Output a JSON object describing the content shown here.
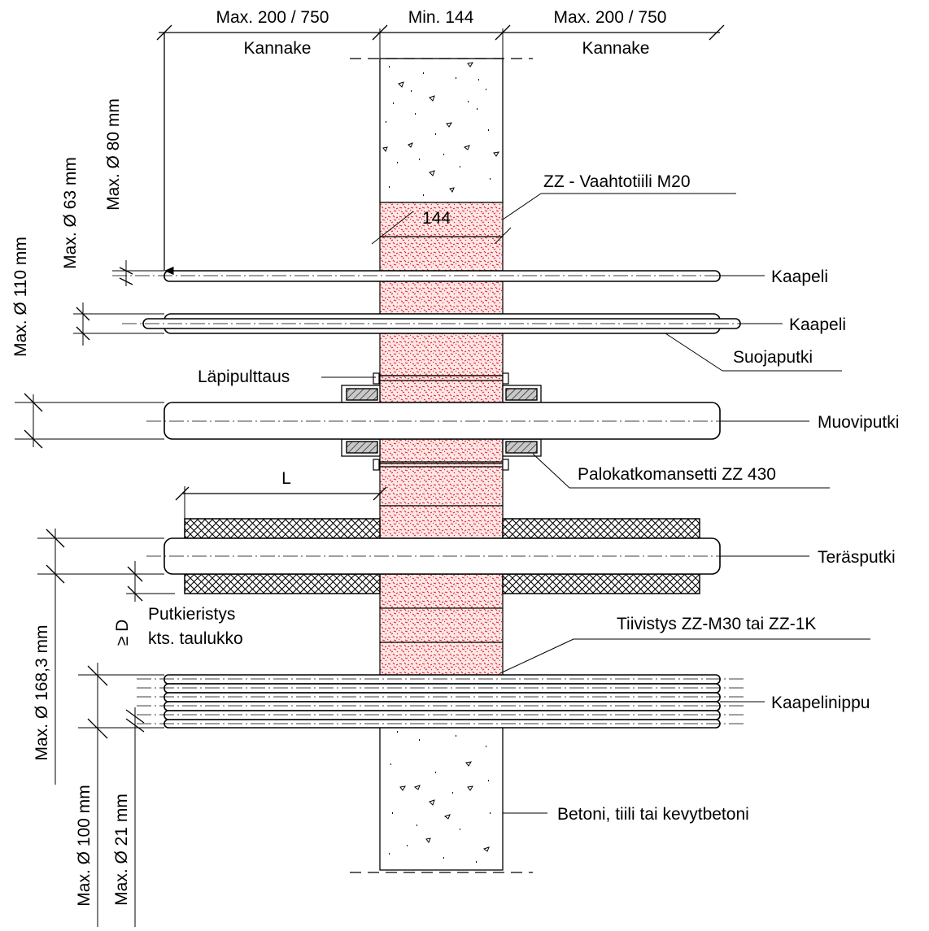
{
  "top_dims": {
    "left": "Max. 200 / 750",
    "center": "Min. 144",
    "right": "Max. 200 / 750",
    "left_sub": "Kannake",
    "right_sub": "Kannake"
  },
  "left_dims": {
    "cable1": "Max. Ø 80 mm",
    "cable2": "Max. Ø 63 mm",
    "plastic": "Max. Ø 110 mm",
    "steel": "Max. Ø 168,3 mm",
    "bundle": "Max. Ø 100 mm",
    "single": "Max. Ø 21 mm",
    "ins_thickness": "≥ D"
  },
  "labels": {
    "brick": "ZZ - Vaahtotiili M20",
    "brick_dim": "144",
    "cable1": "Kaapeli",
    "cable2": "Kaapeli",
    "sleeve": "Suojaputki",
    "bolt": "Läpipulttaus",
    "plastic_pipe": "Muoviputki",
    "collar": "Palokatkomansetti ZZ 430",
    "length": "L",
    "steel_pipe": "Teräsputki",
    "insulation_1": "Putkieristys",
    "insulation_2": "kts. taulukko",
    "sealant": "Tiivistys ZZ-M30 tai ZZ-1K",
    "bundle": "Kaapelinippu",
    "wall": "Betoni, tiili tai kevytbetoni"
  },
  "colors": {
    "brick_fill": "#e01e24",
    "line": "#000000",
    "insulation_hatch": "#000000"
  }
}
